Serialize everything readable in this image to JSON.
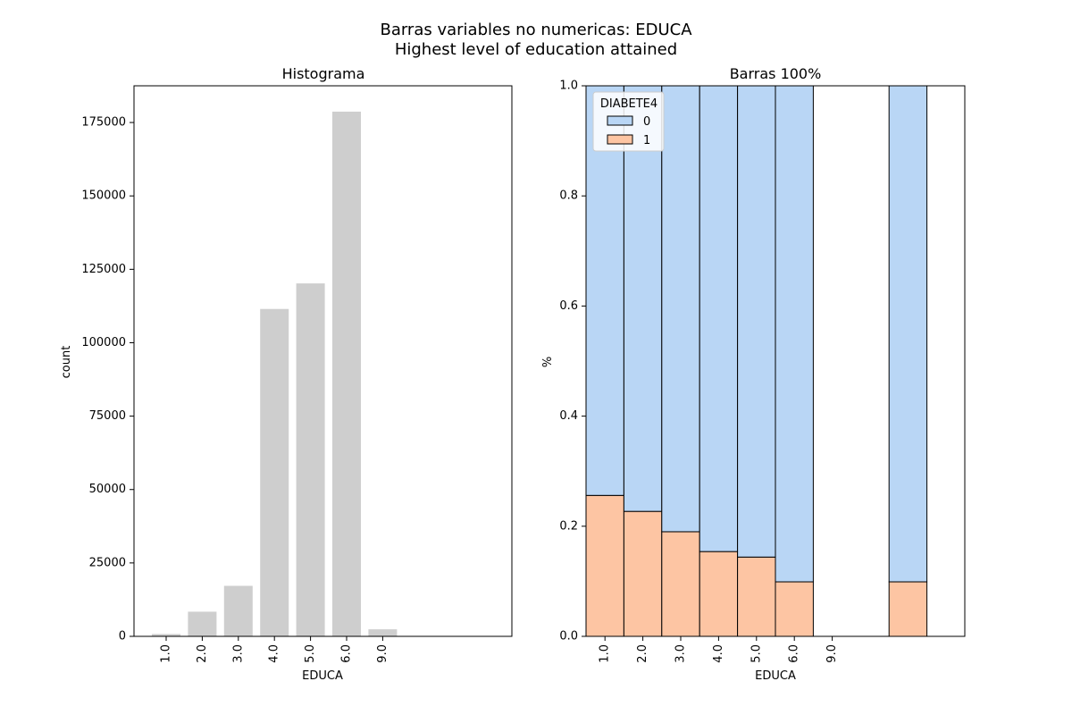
{
  "figure": {
    "suptitle_line1": "Barras variables no numericas: EDUCA",
    "suptitle_line2": "Highest level of education attained"
  },
  "colors": {
    "hist_bar": "#cecece",
    "series_0": "#b9d6f5",
    "series_1": "#fdc5a3",
    "edge": "#000000"
  },
  "chart_data": [
    {
      "type": "bar",
      "title": "Histograma",
      "xlabel": "EDUCA",
      "ylabel": "count",
      "categories": [
        "1.0",
        "2.0",
        "3.0",
        "4.0",
        "5.0",
        "6.0",
        "9.0"
      ],
      "values": [
        800,
        8400,
        17200,
        111500,
        120200,
        178700,
        2400
      ],
      "ylim": [
        0,
        187500
      ],
      "yticks": [
        0,
        25000,
        50000,
        75000,
        100000,
        125000,
        150000,
        175000
      ],
      "grid": false
    },
    {
      "type": "bar",
      "stacked": true,
      "normalized": true,
      "title": "Barras 100%",
      "xlabel": "EDUCA",
      "ylabel": "%",
      "categories": [
        "1.0",
        "2.0",
        "3.0",
        "4.0",
        "5.0",
        "6.0",
        "9.0"
      ],
      "legend_title": "DIABETE4",
      "legend_position": "upper-left",
      "bars": [
        {
          "x_start": 0.5,
          "x_end": 1.5,
          "share_1": 0.256,
          "share_0": 0.744
        },
        {
          "x_start": 1.5,
          "x_end": 2.5,
          "share_1": 0.227,
          "share_0": 0.773
        },
        {
          "x_start": 2.5,
          "x_end": 3.5,
          "share_1": 0.19,
          "share_0": 0.81
        },
        {
          "x_start": 3.5,
          "x_end": 4.5,
          "share_1": 0.154,
          "share_0": 0.846
        },
        {
          "x_start": 4.5,
          "x_end": 5.5,
          "share_1": 0.144,
          "share_0": 0.856
        },
        {
          "x_start": 5.5,
          "x_end": 6.5,
          "share_1": 0.099,
          "share_0": 0.901
        },
        {
          "x_start": 8.5,
          "x_end": 9.5,
          "share_1": 0.099,
          "share_0": 0.901
        }
      ],
      "series": [
        {
          "name": "0"
        },
        {
          "name": "1"
        }
      ],
      "ylim": [
        0,
        1
      ],
      "yticks": [
        "0.0",
        "0.2",
        "0.4",
        "0.6",
        "0.8",
        "1.0"
      ],
      "grid": false
    }
  ]
}
